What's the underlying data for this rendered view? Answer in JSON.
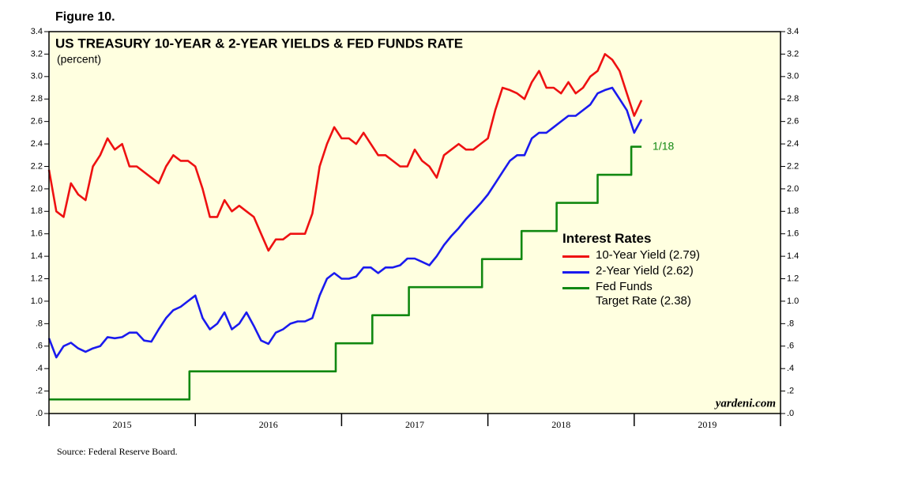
{
  "chart_data": {
    "type": "line",
    "figure_label": "Figure 10.",
    "title": "US TREASURY 10-YEAR & 2-YEAR YIELDS & FED FUNDS RATE",
    "subtitle": "(percent)",
    "source": "Source: Federal Reserve Board.",
    "watermark": "yardeni.com",
    "legend_title": "Interest Rates",
    "annotation": "1/18",
    "x": [
      2015.0,
      2015.05,
      2015.1,
      2015.15,
      2015.2,
      2015.25,
      2015.3,
      2015.35,
      2015.4,
      2015.45,
      2015.5,
      2015.55,
      2015.6,
      2015.65,
      2015.7,
      2015.75,
      2015.8,
      2015.85,
      2015.9,
      2015.95,
      2016.0,
      2016.05,
      2016.1,
      2016.15,
      2016.2,
      2016.25,
      2016.3,
      2016.35,
      2016.4,
      2016.45,
      2016.5,
      2016.55,
      2016.6,
      2016.65,
      2016.7,
      2016.75,
      2016.8,
      2016.85,
      2016.9,
      2016.95,
      2017.0,
      2017.05,
      2017.1,
      2017.15,
      2017.2,
      2017.25,
      2017.3,
      2017.35,
      2017.4,
      2017.45,
      2017.5,
      2017.55,
      2017.6,
      2017.65,
      2017.7,
      2017.75,
      2017.8,
      2017.85,
      2017.9,
      2017.95,
      2018.0,
      2018.05,
      2018.1,
      2018.15,
      2018.2,
      2018.25,
      2018.3,
      2018.35,
      2018.4,
      2018.45,
      2018.5,
      2018.55,
      2018.6,
      2018.65,
      2018.7,
      2018.75,
      2018.8,
      2018.85,
      2018.9,
      2018.95,
      2019.0,
      2019.05
    ],
    "series": [
      {
        "name": "10-Year Yield (2.79)",
        "color": "#ee1111",
        "values": [
          2.17,
          1.8,
          1.75,
          2.05,
          1.95,
          1.9,
          2.2,
          2.3,
          2.45,
          2.35,
          2.4,
          2.2,
          2.2,
          2.15,
          2.1,
          2.05,
          2.2,
          2.3,
          2.25,
          2.25,
          2.2,
          2.0,
          1.75,
          1.75,
          1.9,
          1.8,
          1.85,
          1.8,
          1.75,
          1.6,
          1.45,
          1.55,
          1.55,
          1.6,
          1.6,
          1.6,
          1.78,
          2.2,
          2.4,
          2.55,
          2.45,
          2.45,
          2.4,
          2.5,
          2.4,
          2.3,
          2.3,
          2.25,
          2.2,
          2.2,
          2.35,
          2.25,
          2.2,
          2.1,
          2.3,
          2.35,
          2.4,
          2.35,
          2.35,
          2.4,
          2.45,
          2.7,
          2.9,
          2.88,
          2.85,
          2.8,
          2.95,
          3.05,
          2.9,
          2.9,
          2.85,
          2.95,
          2.85,
          2.9,
          3.0,
          3.05,
          3.2,
          3.15,
          3.05,
          2.85,
          2.65,
          2.79
        ]
      },
      {
        "name": "2-Year Yield (2.62)",
        "color": "#1a1aee",
        "values": [
          0.67,
          0.5,
          0.6,
          0.63,
          0.58,
          0.55,
          0.58,
          0.6,
          0.68,
          0.67,
          0.68,
          0.72,
          0.72,
          0.65,
          0.64,
          0.75,
          0.85,
          0.92,
          0.95,
          1.0,
          1.05,
          0.85,
          0.75,
          0.8,
          0.9,
          0.75,
          0.8,
          0.9,
          0.78,
          0.65,
          0.62,
          0.72,
          0.75,
          0.8,
          0.82,
          0.82,
          0.85,
          1.05,
          1.2,
          1.25,
          1.2,
          1.2,
          1.22,
          1.3,
          1.3,
          1.25,
          1.3,
          1.3,
          1.32,
          1.38,
          1.38,
          1.35,
          1.32,
          1.4,
          1.5,
          1.58,
          1.65,
          1.73,
          1.8,
          1.87,
          1.95,
          2.05,
          2.15,
          2.25,
          2.3,
          2.3,
          2.45,
          2.5,
          2.5,
          2.55,
          2.6,
          2.65,
          2.65,
          2.7,
          2.75,
          2.85,
          2.88,
          2.9,
          2.8,
          2.7,
          2.5,
          2.62
        ]
      },
      {
        "name": "Fed Funds\nTarget Rate (2.38)",
        "color": "#118811",
        "x": [
          2015.0,
          2015.96,
          2015.96,
          2016.96,
          2016.96,
          2017.21,
          2017.21,
          2017.46,
          2017.46,
          2017.96,
          2017.96,
          2018.23,
          2018.23,
          2018.47,
          2018.47,
          2018.75,
          2018.75,
          2018.98,
          2018.98,
          2019.05
        ],
        "values": [
          0.125,
          0.125,
          0.375,
          0.375,
          0.625,
          0.625,
          0.875,
          0.875,
          1.125,
          1.125,
          1.375,
          1.375,
          1.625,
          1.625,
          1.875,
          1.875,
          2.125,
          2.125,
          2.375,
          2.375
        ]
      }
    ],
    "xlim": [
      2015,
      2020
    ],
    "xticks": [
      2015,
      2016,
      2017,
      2018,
      2019,
      2020
    ],
    "year_labels": [
      2015,
      2016,
      2017,
      2018,
      2019
    ],
    "ylim": [
      0,
      3.4
    ],
    "yticks": [
      {
        "value": 0,
        "label": ".0"
      },
      {
        "value": 0.2,
        "label": ".2"
      },
      {
        "value": 0.4,
        "label": ".4"
      },
      {
        "value": 0.6,
        "label": ".6"
      },
      {
        "value": 0.8,
        "label": ".8"
      },
      {
        "value": 1,
        "label": "1.0"
      },
      1.2,
      1.4,
      1.6,
      1.8,
      {
        "value": 2,
        "label": "2.0"
      },
      2.2,
      2.4,
      2.6,
      2.8,
      {
        "value": 3,
        "label": "3.0"
      },
      3.2,
      3.4
    ],
    "background": "#ffffe0"
  }
}
